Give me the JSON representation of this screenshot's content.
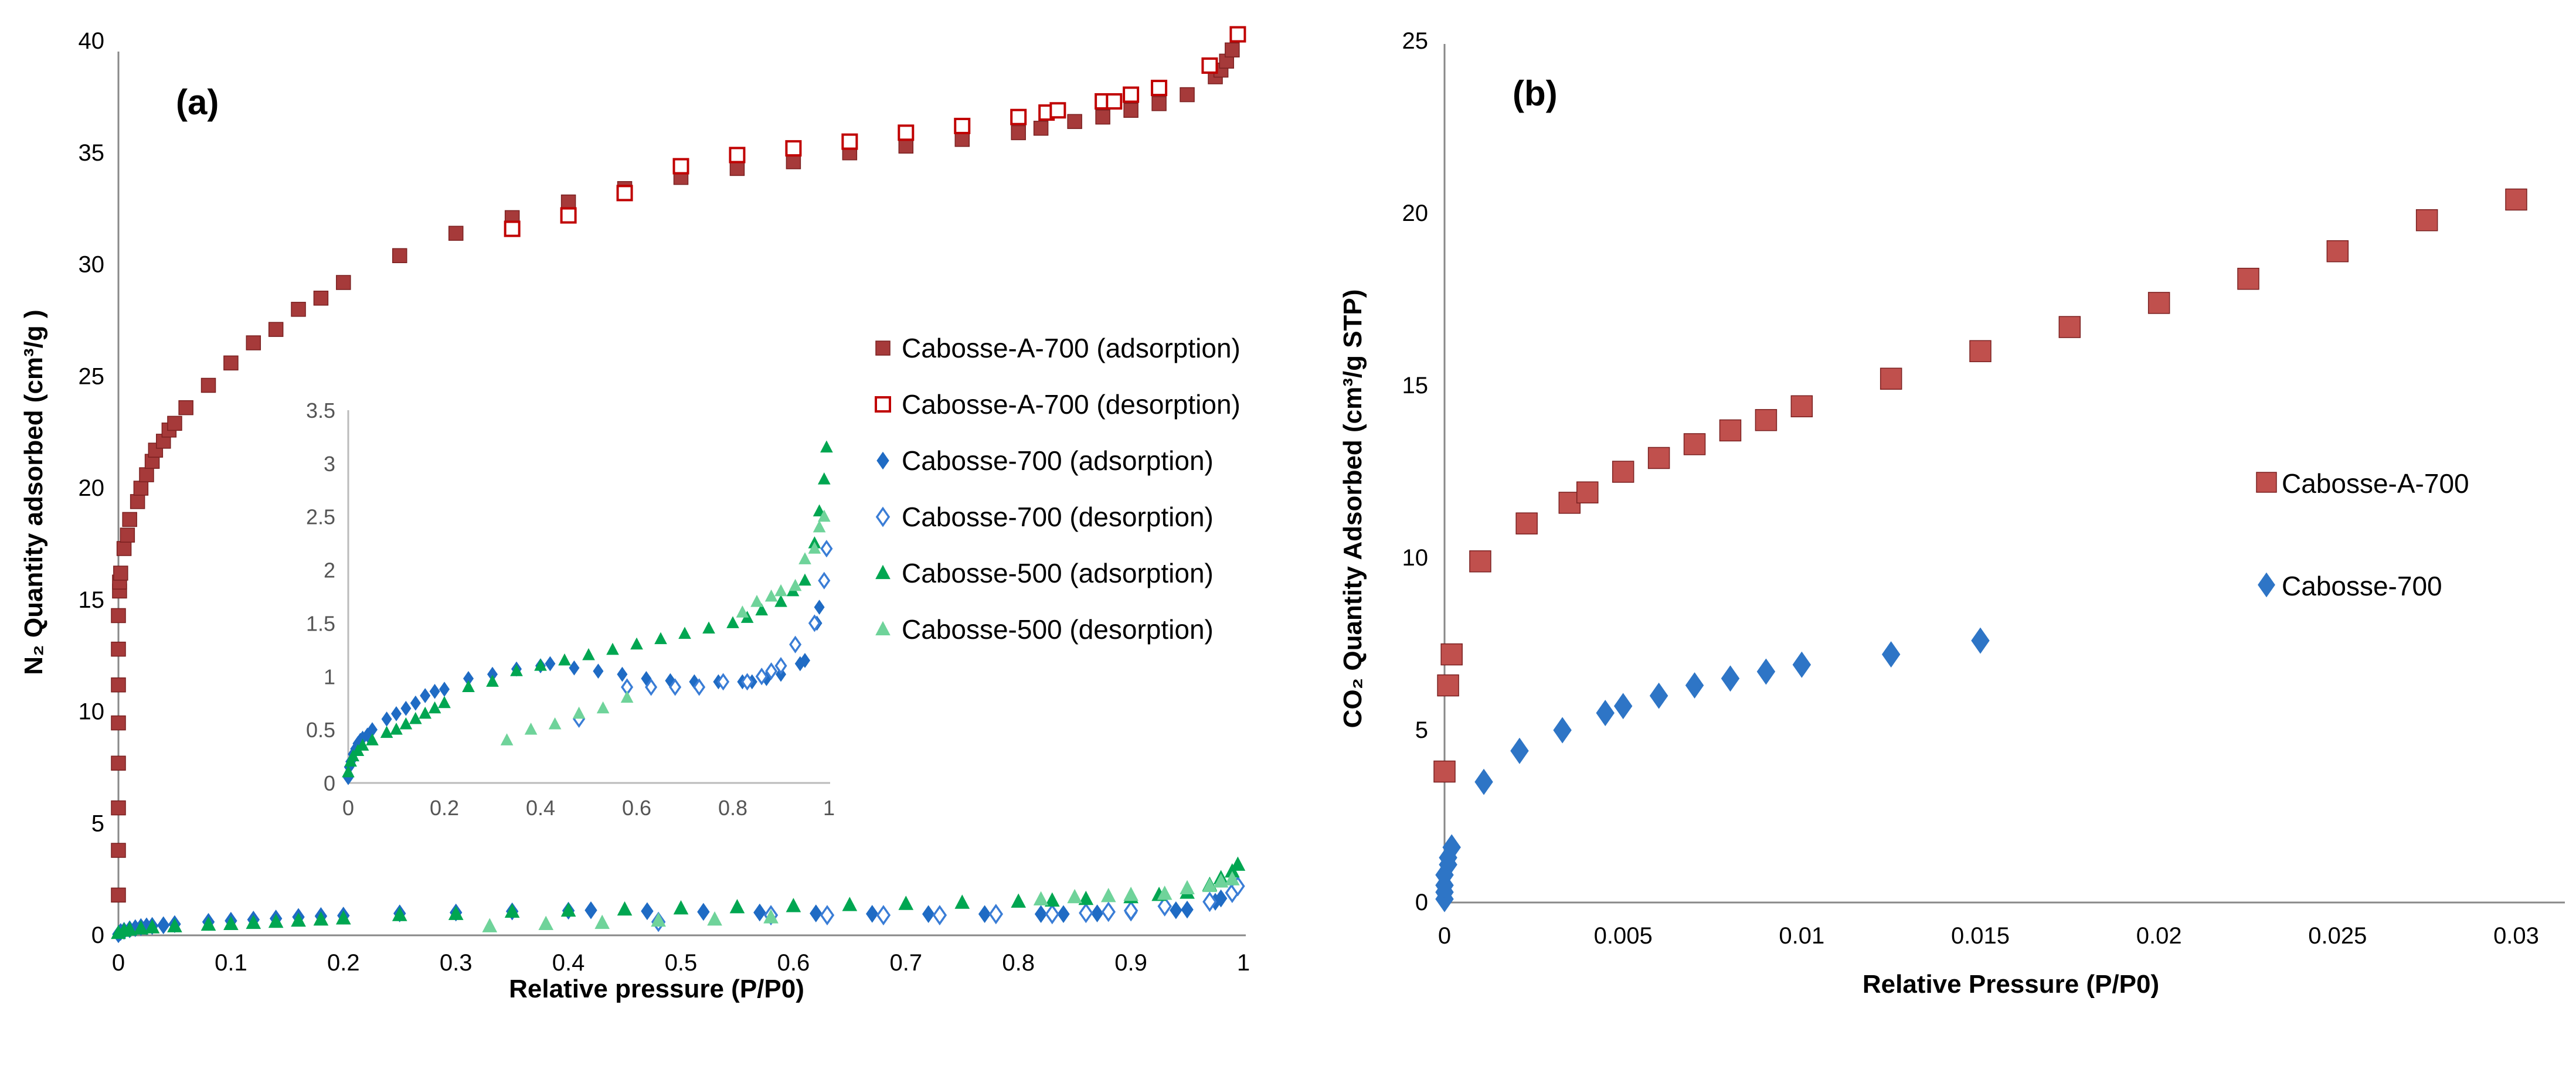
{
  "chart_data": [
    {
      "type": "scatter",
      "panel_label": "(a)",
      "xlabel": "Relative pressure (P/P0)",
      "ylabel": "N₂ Quantity adsorbed (cm³/g )",
      "xlim": [
        0,
        1
      ],
      "ylim": [
        0,
        40
      ],
      "xticks": [
        "0",
        "0.1",
        "0.2",
        "0.3",
        "0.4",
        "0.5",
        "0.6",
        "0.7",
        "0.8",
        "0.9",
        "1"
      ],
      "yticks": [
        "0",
        "5",
        "10",
        "15",
        "20",
        "25",
        "30",
        "35",
        "40"
      ],
      "grid": false,
      "legend_placement": "right",
      "inset": {
        "xlim": [
          0,
          1
        ],
        "ylim": [
          0,
          3.5
        ],
        "xticks": [
          "0",
          "0.2",
          "0.4",
          "0.6",
          "0.8",
          "1"
        ],
        "yticks": [
          "0",
          "0.5",
          "1",
          "1.5",
          "2",
          "2.5",
          "3",
          "3.5"
        ],
        "series_shown": [
          "Cabosse-700 (adsorption)",
          "Cabosse-700 (desorption)",
          "Cabosse-500 (adsorption)",
          "Cabosse-500 (desorption)"
        ]
      },
      "series": [
        {
          "name": "Cabosse-A-700 (adsorption)",
          "marker": "square",
          "filled": true,
          "color": "#A63A3A",
          "x": [
            0,
            0,
            0,
            0,
            0,
            0,
            0,
            0,
            0.001,
            0.001,
            0.002,
            0.005,
            0.008,
            0.01,
            0.017,
            0.02,
            0.025,
            0.03,
            0.033,
            0.04,
            0.045,
            0.05,
            0.06,
            0.08,
            0.1,
            0.12,
            0.14,
            0.16,
            0.18,
            0.2,
            0.25,
            0.3,
            0.35,
            0.4,
            0.45,
            0.5,
            0.55,
            0.6,
            0.65,
            0.7,
            0.75,
            0.8,
            0.82,
            0.85,
            0.875,
            0.9,
            0.925,
            0.95,
            0.975,
            0.98,
            0.985,
            0.99,
            0.995
          ],
          "y": [
            1.8,
            3.8,
            5.7,
            7.7,
            9.5,
            11.2,
            12.8,
            14.3,
            15.4,
            15.8,
            16.2,
            17.3,
            17.9,
            18.6,
            19.4,
            20.0,
            20.6,
            21.2,
            21.7,
            22.1,
            22.6,
            22.9,
            23.6,
            24.6,
            25.6,
            26.5,
            27.1,
            28.0,
            28.5,
            29.2,
            30.4,
            31.4,
            32.1,
            32.8,
            33.4,
            33.9,
            34.3,
            34.6,
            35.0,
            35.3,
            35.6,
            35.9,
            36.1,
            36.4,
            36.6,
            36.9,
            37.2,
            37.6,
            38.4,
            38.7,
            39.1,
            39.6,
            40.3
          ]
        },
        {
          "name": "Cabosse-A-700 (desorption)",
          "marker": "square",
          "filled": false,
          "color": "#C00000",
          "x": [
            0.35,
            0.4,
            0.45,
            0.5,
            0.55,
            0.6,
            0.65,
            0.7,
            0.75,
            0.8,
            0.825,
            0.835,
            0.875,
            0.885,
            0.9,
            0.925,
            0.97,
            0.995
          ],
          "y": [
            31.6,
            32.2,
            33.2,
            34.4,
            34.9,
            35.2,
            35.5,
            35.9,
            36.2,
            36.6,
            36.8,
            36.9,
            37.3,
            37.3,
            37.6,
            37.9,
            38.9,
            40.3
          ]
        },
        {
          "name": "Cabosse-700 (adsorption)",
          "marker": "diamond",
          "filled": true,
          "color": "#1F6BC4",
          "x": [
            0,
            0.002,
            0.005,
            0.01,
            0.015,
            0.02,
            0.025,
            0.03,
            0.04,
            0.05,
            0.08,
            0.1,
            0.12,
            0.14,
            0.16,
            0.18,
            0.2,
            0.25,
            0.3,
            0.35,
            0.4,
            0.42,
            0.47,
            0.52,
            0.57,
            0.62,
            0.67,
            0.72,
            0.77,
            0.82,
            0.84,
            0.87,
            0.9,
            0.94,
            0.95,
            0.975,
            0.98,
            0.99,
            0.995
          ],
          "y": [
            0.05,
            0.15,
            0.2,
            0.27,
            0.32,
            0.37,
            0.4,
            0.42,
            0.45,
            0.5,
            0.6,
            0.65,
            0.7,
            0.75,
            0.82,
            0.86,
            0.88,
            0.98,
            1.02,
            1.07,
            1.1,
            1.12,
            1.08,
            1.05,
            1.02,
            0.98,
            0.96,
            0.95,
            0.95,
            0.95,
            0.95,
            0.98,
            1.02,
            1.12,
            1.15,
            1.5,
            1.65,
            1.9,
            2.2
          ]
        },
        {
          "name": "Cabosse-700 (desorption)",
          "marker": "diamond",
          "filled": false,
          "color": "#3A7DD6",
          "x": [
            0.48,
            0.58,
            0.63,
            0.68,
            0.73,
            0.78,
            0.83,
            0.86,
            0.88,
            0.9,
            0.93,
            0.97,
            0.99,
            0.995
          ],
          "y": [
            0.6,
            0.9,
            0.9,
            0.9,
            0.9,
            0.95,
            0.95,
            1.0,
            1.05,
            1.1,
            1.3,
            1.5,
            1.9,
            2.2
          ]
        },
        {
          "name": "Cabosse-500 (adsorption)",
          "marker": "triangle",
          "filled": true,
          "color": "#00A651",
          "x": [
            0,
            0.005,
            0.01,
            0.02,
            0.03,
            0.05,
            0.08,
            0.1,
            0.12,
            0.14,
            0.16,
            0.18,
            0.2,
            0.25,
            0.3,
            0.35,
            0.4,
            0.45,
            0.5,
            0.55,
            0.6,
            0.65,
            0.7,
            0.75,
            0.8,
            0.83,
            0.86,
            0.9,
            0.925,
            0.95,
            0.97,
            0.98,
            0.99,
            0.995
          ],
          "y": [
            0.1,
            0.2,
            0.25,
            0.3,
            0.35,
            0.4,
            0.47,
            0.5,
            0.55,
            0.6,
            0.65,
            0.7,
            0.75,
            0.9,
            0.95,
            1.05,
            1.1,
            1.15,
            1.2,
            1.25,
            1.3,
            1.35,
            1.4,
            1.45,
            1.5,
            1.55,
            1.62,
            1.7,
            1.8,
            1.9,
            2.25,
            2.55,
            2.85,
            3.15
          ]
        },
        {
          "name": "Cabosse-500 (desorption)",
          "marker": "triangle",
          "filled": true,
          "color": "#6FD39A",
          "x": [
            0.33,
            0.38,
            0.43,
            0.48,
            0.53,
            0.58,
            0.82,
            0.85,
            0.88,
            0.9,
            0.93,
            0.95,
            0.97,
            0.98,
            0.99
          ],
          "y": [
            0.4,
            0.5,
            0.55,
            0.65,
            0.7,
            0.8,
            1.6,
            1.7,
            1.75,
            1.8,
            1.85,
            2.1,
            2.2,
            2.4,
            2.5
          ]
        }
      ]
    },
    {
      "type": "scatter",
      "panel_label": "(b)",
      "xlabel": "Relative Pressure (P/P0)",
      "ylabel": "CO₂ Quantity Adsorbed (cm³/g STP)",
      "xlim": [
        0,
        0.03
      ],
      "ylim": [
        0,
        25
      ],
      "xticks": [
        "0",
        "0.005",
        "0.01",
        "0.015",
        "0.02",
        "0.025",
        "0.03"
      ],
      "yticks": [
        "0",
        "5",
        "10",
        "15",
        "20",
        "25"
      ],
      "grid": false,
      "legend_placement": "right",
      "series": [
        {
          "name": "Cabosse-A-700",
          "marker": "square",
          "filled": true,
          "color": "#C0504D",
          "x": [
            0,
            0.0001,
            0.0002,
            0.001,
            0.0023,
            0.0035,
            0.004,
            0.005,
            0.006,
            0.007,
            0.008,
            0.009,
            0.01,
            0.0125,
            0.015,
            0.0175,
            0.02,
            0.0225,
            0.025,
            0.0275,
            0.03
          ],
          "y": [
            3.8,
            6.3,
            7.2,
            9.9,
            11.0,
            11.6,
            11.9,
            12.5,
            12.9,
            13.3,
            13.7,
            14.0,
            14.4,
            15.2,
            16.0,
            16.7,
            17.4,
            18.1,
            18.9,
            19.8,
            20.4
          ]
        },
        {
          "name": "Cabosse-700",
          "marker": "diamond",
          "filled": true,
          "color": "#2E75C6",
          "x": [
            0,
            0,
            0,
            0,
            0.0001,
            0.0001,
            0.0002,
            0.0011,
            0.0021,
            0.0033,
            0.0045,
            0.005,
            0.006,
            0.007,
            0.008,
            0.009,
            0.01,
            0.0125,
            0.015
          ],
          "y": [
            0.1,
            0.3,
            0.5,
            0.8,
            1.1,
            1.3,
            1.6,
            3.5,
            4.4,
            5.0,
            5.5,
            5.7,
            6.0,
            6.3,
            6.5,
            6.7,
            6.9,
            7.2,
            7.6
          ]
        }
      ]
    }
  ]
}
